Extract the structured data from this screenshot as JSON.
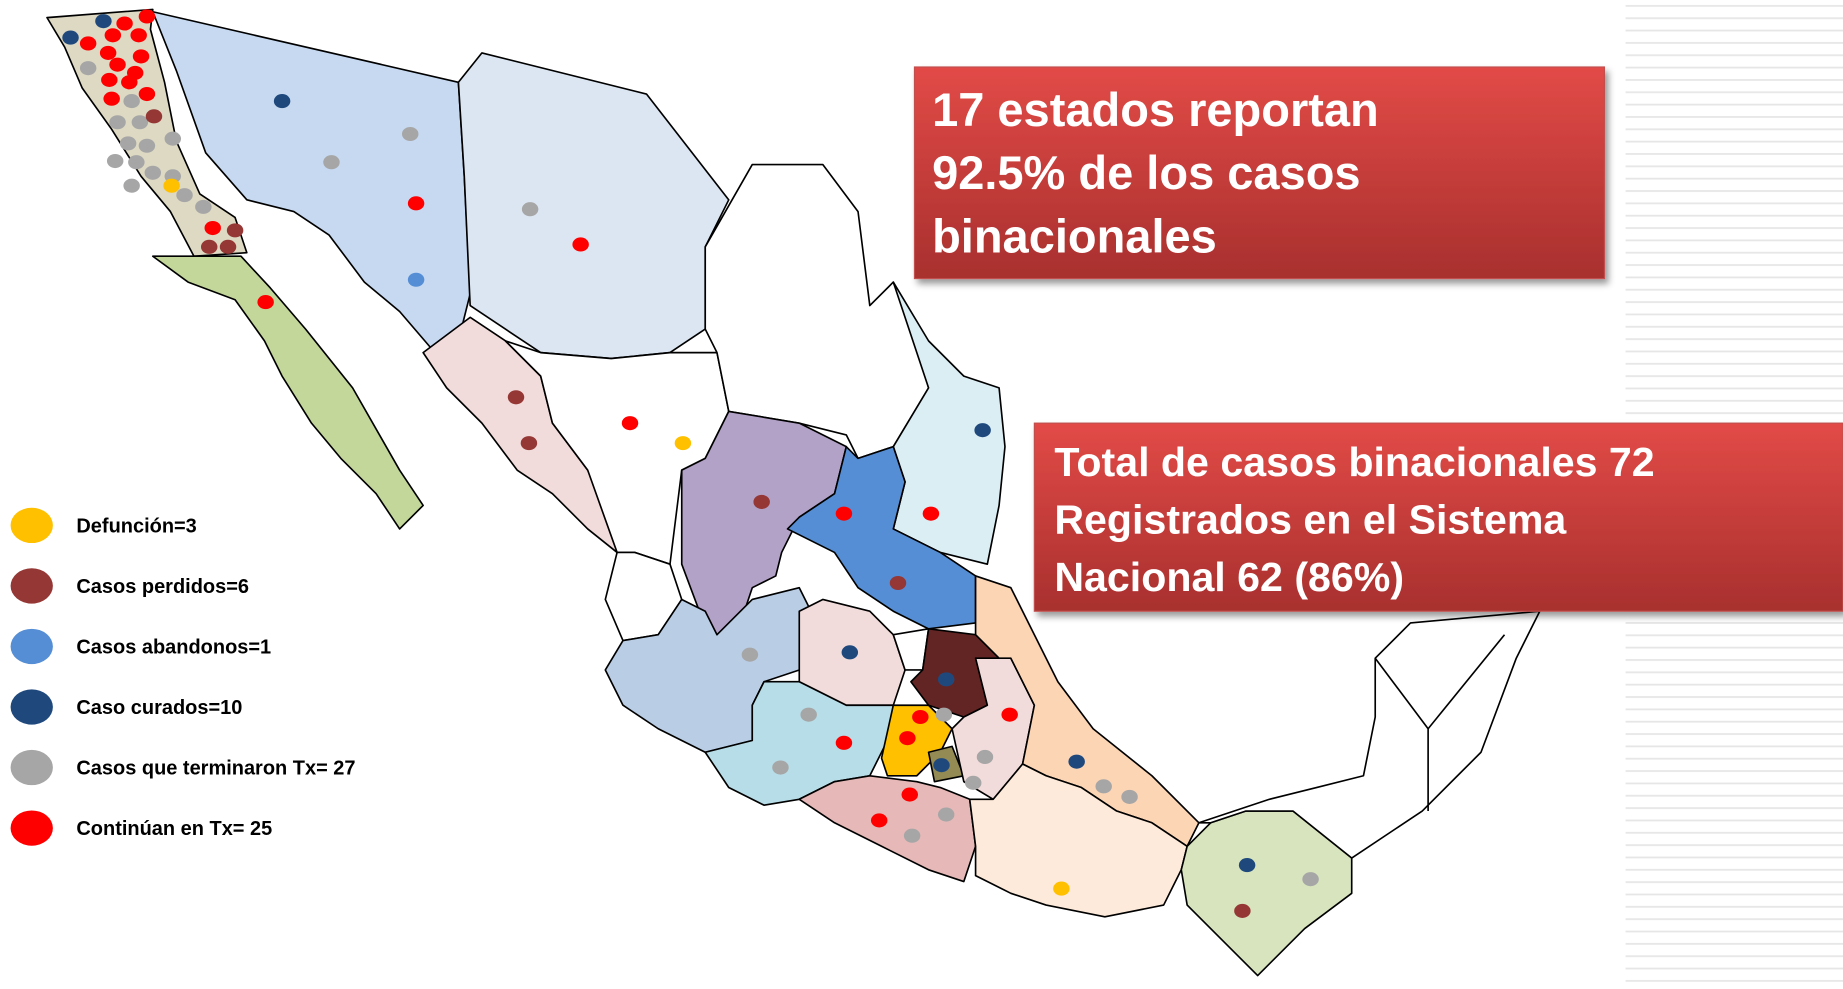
{
  "legend": [
    {
      "label": "Defunción=3",
      "color": "#ffc000"
    },
    {
      "label": "Casos perdidos=6",
      "color": "#953735"
    },
    {
      "label": "Casos abandonos=1",
      "color": "#558ed5"
    },
    {
      "label": "Caso curados=10",
      "color": "#1f497d"
    },
    {
      "label": "Casos que terminaron Tx= 27",
      "color": "#a6a6a6"
    },
    {
      "label": "Continúan en Tx= 25",
      "color": "#ff0000"
    }
  ],
  "callouts": [
    {
      "lines": [
        "17 estados reportan",
        "92.5% de los casos",
        "binacionales"
      ]
    },
    {
      "lines": [
        "Total de casos binacionales 72",
        "Registrados en el Sistema",
        "Nacional 62 (86%)"
      ]
    }
  ]
}
